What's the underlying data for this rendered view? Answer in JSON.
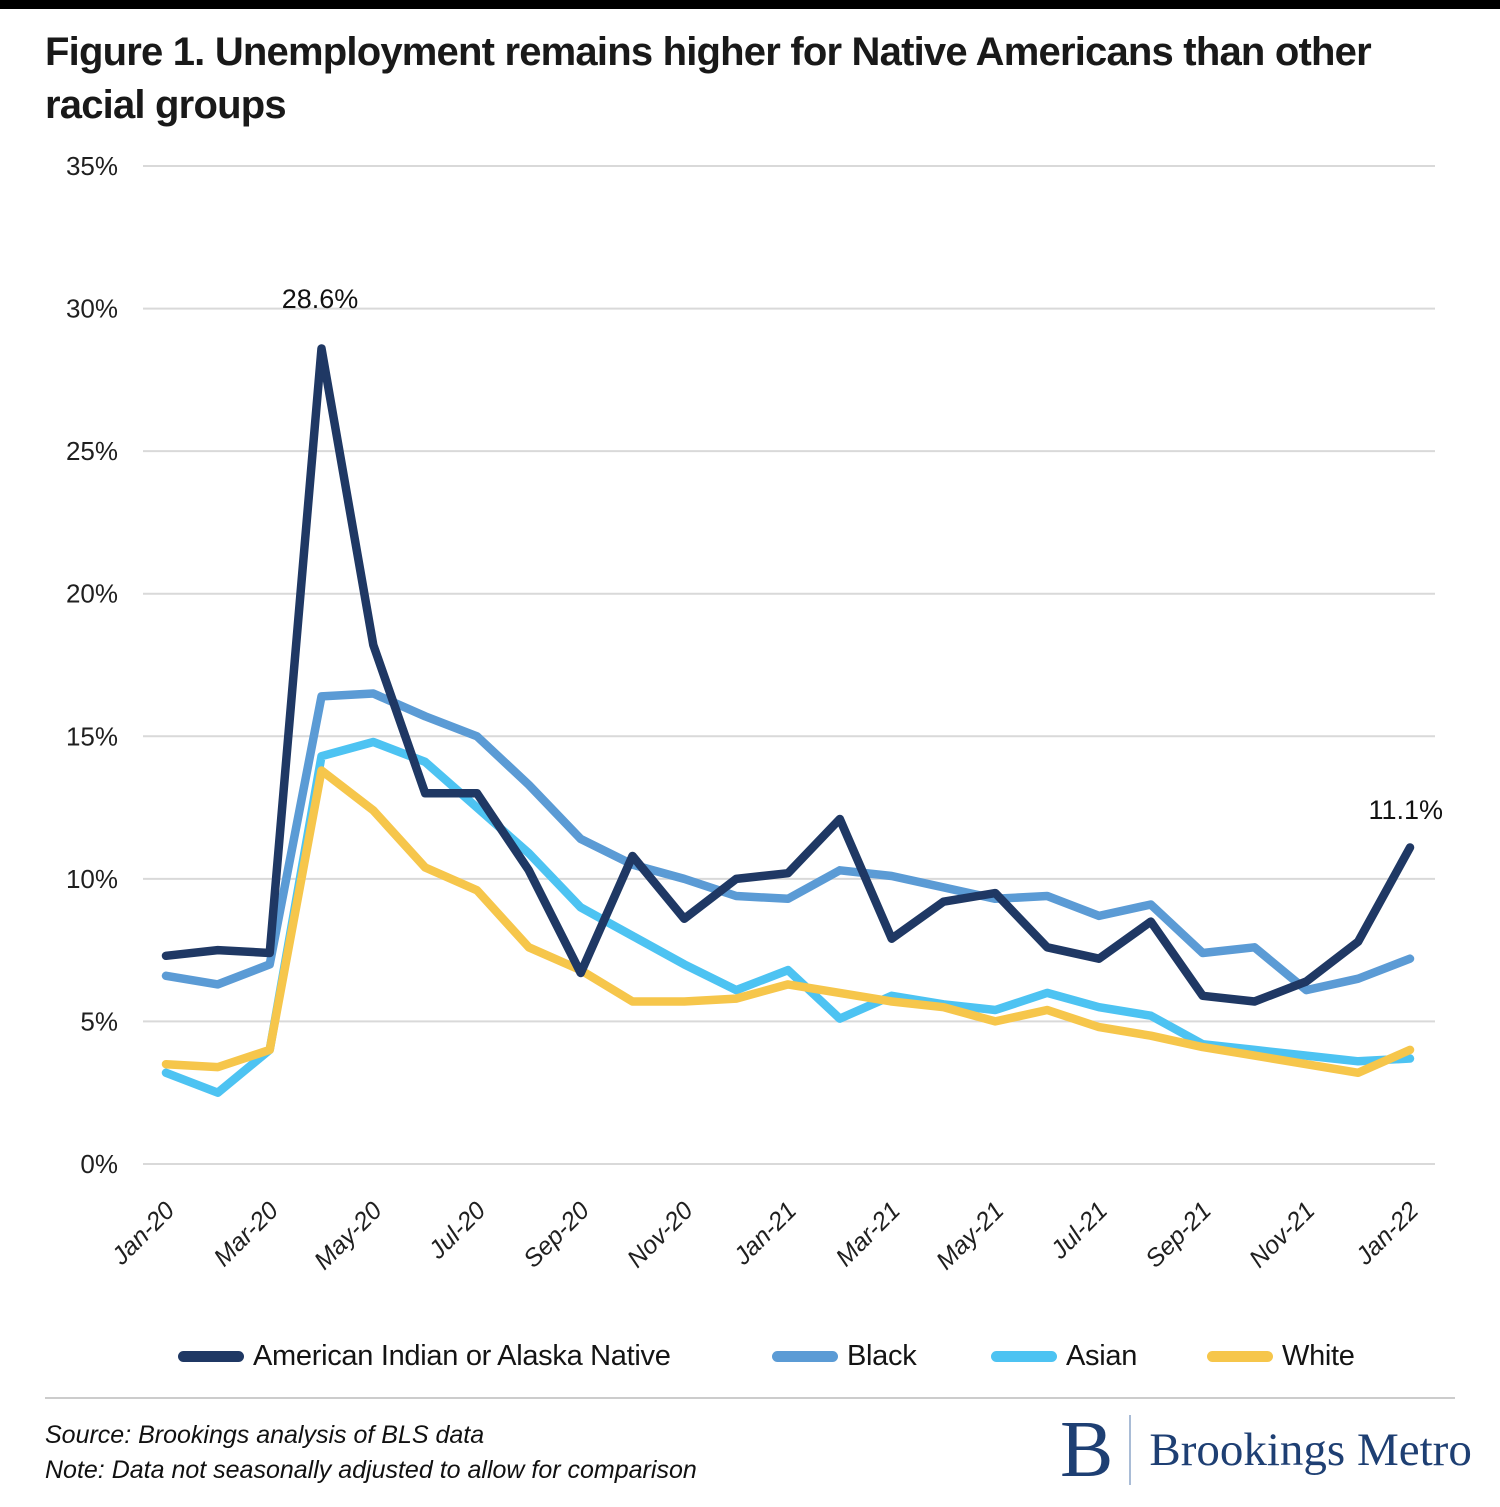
{
  "title": "Figure 1. Unemployment remains higher for Native Americans than other racial groups",
  "title_line1": "Figure 1. Unemployment remains higher for Native Americans than other",
  "title_line2": "racial groups",
  "chart_data": {
    "type": "line",
    "title": "Figure 1. Unemployment remains higher for Native Americans than other racial groups",
    "xlabel": "",
    "ylabel": "",
    "ylim": [
      0,
      35
    ],
    "grid": true,
    "legend_position": "bottom",
    "x": [
      "Jan-20",
      "Feb-20",
      "Mar-20",
      "Apr-20",
      "May-20",
      "Jun-20",
      "Jul-20",
      "Aug-20",
      "Sep-20",
      "Oct-20",
      "Nov-20",
      "Dec-20",
      "Jan-21",
      "Feb-21",
      "Mar-21",
      "Apr-21",
      "May-21",
      "Jun-21",
      "Jul-21",
      "Aug-21",
      "Sep-21",
      "Oct-21",
      "Nov-21",
      "Dec-21",
      "Jan-22"
    ],
    "x_tick_labels": [
      "Jan-20",
      "Mar-20",
      "May-20",
      "Jul-20",
      "Sep-20",
      "Nov-20",
      "Jan-21",
      "Mar-21",
      "May-21",
      "Jul-21",
      "Sep-21",
      "Nov-21",
      "Jan-22"
    ],
    "y_tick_labels": [
      "0%",
      "5%",
      "10%",
      "15%",
      "20%",
      "25%",
      "30%",
      "35%"
    ],
    "series": [
      {
        "name": "American Indian or Alaska Native",
        "color": "#1f3864",
        "values": [
          7.3,
          7.5,
          7.4,
          28.6,
          18.2,
          13.0,
          13.0,
          10.3,
          6.7,
          10.8,
          8.6,
          10.0,
          10.2,
          12.1,
          7.9,
          9.2,
          9.5,
          7.6,
          7.2,
          8.5,
          5.9,
          5.7,
          6.4,
          7.8,
          11.1
        ]
      },
      {
        "name": "Black",
        "color": "#5b9bd5",
        "values": [
          6.6,
          6.3,
          7.0,
          16.4,
          16.5,
          15.7,
          15.0,
          13.3,
          11.4,
          10.5,
          10.0,
          9.4,
          9.3,
          10.3,
          10.1,
          9.7,
          9.3,
          9.4,
          8.7,
          9.1,
          7.4,
          7.6,
          6.1,
          6.5,
          7.2
        ]
      },
      {
        "name": "Asian",
        "color": "#4dc3f2",
        "values": [
          3.2,
          2.5,
          4.0,
          14.3,
          14.8,
          14.1,
          12.5,
          10.9,
          9.0,
          8.0,
          7.0,
          6.1,
          6.8,
          5.1,
          5.9,
          5.6,
          5.4,
          6.0,
          5.5,
          5.2,
          4.2,
          4.0,
          3.8,
          3.6,
          3.7
        ]
      },
      {
        "name": "White",
        "color": "#f6c64b",
        "values": [
          3.5,
          3.4,
          4.0,
          13.8,
          12.4,
          10.4,
          9.6,
          7.6,
          6.8,
          5.7,
          5.7,
          5.8,
          6.3,
          6.0,
          5.7,
          5.5,
          5.0,
          5.4,
          4.8,
          4.5,
          4.1,
          3.8,
          3.5,
          3.2,
          4.0
        ]
      }
    ],
    "annotations": [
      {
        "label": "28.6%",
        "series": "American Indian or Alaska Native",
        "x": "Apr-20",
        "y": 28.6
      },
      {
        "label": "11.1%",
        "series": "American Indian or Alaska Native",
        "x": "Jan-22",
        "y": 11.1
      }
    ]
  },
  "footer": {
    "source": "Source: Brookings analysis of BLS data",
    "note": "Note: Data not seasonally adjusted to allow for comparison"
  },
  "logo": {
    "letter": "B",
    "text": "Brookings Metro",
    "color": "#1e3f73"
  },
  "colors": {
    "grid": "#d9d9d9",
    "axis_text": "#1f1f1f",
    "annotation_text": "#111111",
    "topbar": "#000000"
  }
}
